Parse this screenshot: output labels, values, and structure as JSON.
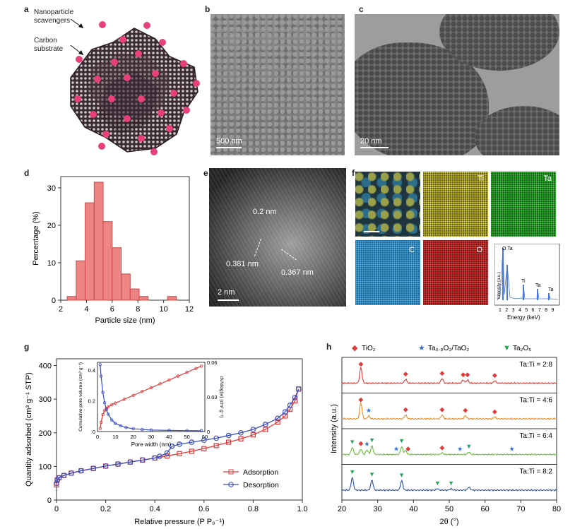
{
  "panel_labels": {
    "a": "a",
    "b": "b",
    "c": "c",
    "d": "d",
    "e": "e",
    "f": "f",
    "g": "g",
    "h": "h"
  },
  "panel_a": {
    "nanoparticle_label": "Nanoparticle scavengers",
    "carbon_label": "Carbon substrate"
  },
  "panel_b": {
    "scale_bar": "500 nm"
  },
  "panel_c": {
    "scale_bar": "20 nm"
  },
  "panel_e": {
    "d1": "0.2 nm",
    "d2": "0.381 nm",
    "d3": "0.367 nm",
    "scale_bar": "2 nm"
  },
  "panel_f": {
    "maps": [
      "Ti",
      "Ta",
      "C",
      "O"
    ],
    "eds_title": "O Ta",
    "eds_ti": "Ti",
    "eds_ta1": "Ta",
    "eds_ta2": "Ta",
    "eds_ylabel": "Intensity (a.u.)",
    "eds_xlabel": "Energy (keV)",
    "eds_ticks": [
      "1",
      "2",
      "3",
      "4",
      "5",
      "6",
      "7",
      "8",
      "9"
    ]
  },
  "chart_data": [
    {
      "panel": "d",
      "type": "bar",
      "xlabel": "Particle size (nm)",
      "ylabel": "Percentage (%)",
      "xlim": [
        2,
        12
      ],
      "ylim": [
        0,
        33
      ],
      "xticks": [
        2,
        4,
        6,
        8,
        10,
        12
      ],
      "yticks": [
        0,
        10,
        20,
        30
      ],
      "bin_width": 0.7,
      "bins": [
        2.5,
        3.2,
        3.9,
        4.6,
        5.3,
        6.0,
        6.7,
        7.4,
        8.1,
        10.3
      ],
      "values": [
        1,
        10.5,
        26,
        31.5,
        21,
        14,
        7,
        3,
        1,
        1
      ],
      "color": "#e7696a"
    },
    {
      "panel": "g",
      "type": "line",
      "xlabel": "Relative pressure (P P₀⁻¹)",
      "ylabel": "Quantity adsorbed (cm³ g⁻¹ STP)",
      "xlim": [
        0,
        1.0
      ],
      "ylim": [
        0,
        420
      ],
      "xticks": [
        "0",
        "0.2",
        "0.4",
        "0.6",
        "0.8",
        "1.0"
      ],
      "yticks": [
        "0",
        "100",
        "200",
        "300",
        "400"
      ],
      "series": [
        {
          "name": "Adsorption",
          "color": "#e03a3a",
          "marker": "square",
          "x": [
            0,
            0.003,
            0.01,
            0.03,
            0.06,
            0.1,
            0.15,
            0.2,
            0.25,
            0.3,
            0.35,
            0.4,
            0.45,
            0.5,
            0.55,
            0.6,
            0.65,
            0.7,
            0.75,
            0.8,
            0.85,
            0.9,
            0.93,
            0.95,
            0.97,
            0.985
          ],
          "y": [
            45,
            60,
            66,
            73,
            80,
            87,
            94,
            101,
            107,
            113,
            119,
            125,
            131,
            138,
            145,
            153,
            162,
            172,
            182,
            194,
            210,
            232,
            250,
            270,
            295,
            330
          ]
        },
        {
          "name": "Desorption",
          "color": "#3a4fc1",
          "marker": "circle",
          "x": [
            0.985,
            0.97,
            0.95,
            0.93,
            0.9,
            0.85,
            0.8,
            0.75,
            0.7,
            0.65,
            0.6,
            0.55,
            0.5,
            0.47,
            0.45,
            0.42,
            0.4,
            0.35,
            0.3,
            0.25,
            0.2,
            0.15,
            0.1,
            0.06,
            0.03,
            0.01,
            0.003,
            0
          ],
          "y": [
            330,
            305,
            282,
            262,
            243,
            225,
            210,
            200,
            192,
            184,
            178,
            172,
            166,
            160,
            140,
            130,
            125,
            119,
            113,
            107,
            101,
            94,
            87,
            80,
            73,
            66,
            60,
            50
          ]
        }
      ],
      "legend_position": "bottom-right",
      "inset": {
        "xlabel": "Pore width (nm)",
        "ylabel_left": "Cumulative pore volume (cm³ g⁻¹)",
        "ylabel_right": "dV/dlog(w) (cm³ g⁻¹)",
        "xlim": [
          0,
          60
        ],
        "xticks": [
          "0",
          "10",
          "20",
          "30",
          "40",
          "50",
          "60"
        ],
        "ylim_left": [
          0,
          0.45
        ],
        "yticks_left": [
          "0",
          "0.2",
          "0.4"
        ],
        "ylim_right": [
          0,
          0.06
        ],
        "yticks_right": [
          "0",
          "0.03",
          "0.06"
        ],
        "series": [
          {
            "name": "Cumulative pore volume",
            "color": "#e03a3a",
            "axis": "left",
            "x": [
              1.5,
              2,
              3,
              4,
              5,
              6,
              8,
              10,
              15,
              20,
              25,
              30,
              35,
              40,
              45,
              50,
              55,
              58
            ],
            "y": [
              0.02,
              0.06,
              0.11,
              0.135,
              0.15,
              0.16,
              0.175,
              0.185,
              0.21,
              0.235,
              0.26,
              0.285,
              0.31,
              0.335,
              0.36,
              0.385,
              0.41,
              0.425
            ]
          },
          {
            "name": "dV/dlog(w)",
            "color": "#3a4fc1",
            "axis": "right",
            "x": [
              1.5,
              2,
              3,
              4,
              5,
              6,
              8,
              10,
              13,
              16,
              20,
              25,
              30,
              40,
              50,
              58
            ],
            "y": [
              0.058,
              0.048,
              0.034,
              0.025,
              0.019,
              0.015,
              0.01,
              0.007,
              0.005,
              0.0035,
              0.0025,
              0.0018,
              0.0013,
              0.001,
              0.0008,
              0.0007
            ]
          }
        ]
      }
    },
    {
      "panel": "h",
      "type": "line",
      "xlabel": "2θ (°)",
      "ylabel": "Intensity (a.u.)",
      "xlim": [
        20,
        80
      ],
      "xticks": [
        20,
        30,
        40,
        50,
        60,
        70,
        80
      ],
      "legend": [
        {
          "name": "TiO₂",
          "symbol": "◆",
          "color": "#e03a3a"
        },
        {
          "name": "Ta₀.₈O₂/TaO₂",
          "symbol": "★",
          "color": "#2f6fd0"
        },
        {
          "name": "Ta₂O₅",
          "symbol": "▼",
          "color": "#2aa05a"
        }
      ],
      "series": [
        {
          "name": "Ta:Ti = 2:8",
          "color": "#e03a3a",
          "peaks": [
            [
              25.3,
              1.0
            ],
            [
              37.8,
              0.25
            ],
            [
              48.0,
              0.3
            ],
            [
              53.9,
              0.2
            ],
            [
              55.1,
              0.2
            ],
            [
              62.7,
              0.15
            ]
          ],
          "markers": [
            [
              "TiO2",
              25.3
            ],
            [
              "TiO2",
              37.8
            ],
            [
              "TiO2",
              48.0
            ],
            [
              "TiO2",
              53.9
            ],
            [
              "TiO2",
              55.1
            ],
            [
              "TiO2",
              62.7
            ]
          ]
        },
        {
          "name": "Ta:Ti = 4:6",
          "color": "#f08a24",
          "peaks": [
            [
              25.3,
              1.0
            ],
            [
              27.5,
              0.18
            ],
            [
              37.8,
              0.25
            ],
            [
              48.0,
              0.25
            ],
            [
              54.5,
              0.2
            ],
            [
              62.7,
              0.12
            ]
          ],
          "markers": [
            [
              "TaO2",
              27.5
            ],
            [
              "TiO2",
              25.3
            ],
            [
              "TiO2",
              37.8
            ],
            [
              "TiO2",
              48.0
            ],
            [
              "TiO2",
              54.5
            ],
            [
              "TiO2",
              62.7
            ]
          ]
        },
        {
          "name": "Ta:Ti = 6:4",
          "color": "#6bbf3a",
          "peaks": [
            [
              22.9,
              0.45
            ],
            [
              25.3,
              0.35
            ],
            [
              27.0,
              0.3
            ],
            [
              28.4,
              0.55
            ],
            [
              36.7,
              0.5
            ],
            [
              37.8,
              0.25
            ],
            [
              48.0,
              0.1
            ],
            [
              55.5,
              0.15
            ]
          ],
          "markers": [
            [
              "Ta2O5",
              22.9
            ],
            [
              "TiO2",
              25.3
            ],
            [
              "TaO2",
              27.0
            ],
            [
              "Ta2O5",
              28.4
            ],
            [
              "TaO2",
              35.2
            ],
            [
              "Ta2O5",
              36.7
            ],
            [
              "TiO2",
              38.5
            ],
            [
              "TiO2",
              48.0
            ],
            [
              "TaO2",
              53.0
            ],
            [
              "Ta2O5",
              55.5
            ],
            [
              "TaO2",
              67.5
            ]
          ]
        },
        {
          "name": "Ta:Ti = 8:2",
          "color": "#2a4fb0",
          "peaks": [
            [
              22.9,
              0.8
            ],
            [
              28.4,
              0.65
            ],
            [
              36.7,
              0.6
            ],
            [
              46.7,
              0.1
            ],
            [
              50.5,
              0.08
            ],
            [
              55.5,
              0.2
            ]
          ],
          "markers": [
            [
              "Ta2O5",
              22.9
            ],
            [
              "Ta2O5",
              28.4
            ],
            [
              "Ta2O5",
              36.7
            ],
            [
              "Ta2O5",
              46.7
            ],
            [
              "Ta2O5",
              50.5
            ]
          ]
        }
      ]
    }
  ]
}
